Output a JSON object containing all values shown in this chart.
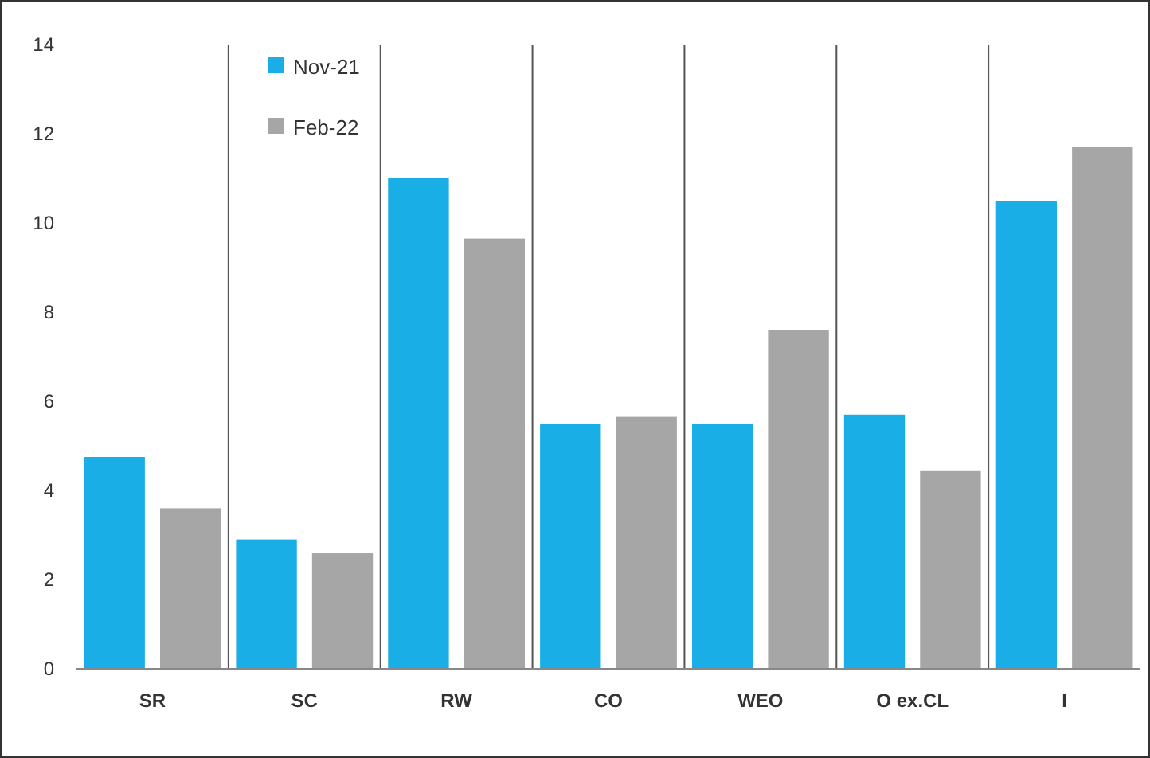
{
  "chart_data": {
    "type": "bar",
    "categories": [
      "SR",
      "SC",
      "RW",
      "CO",
      "WEO",
      "O ex.CL",
      "I"
    ],
    "series": [
      {
        "name": "Nov-21",
        "color": "#1aaee6",
        "values": [
          4.75,
          2.9,
          11.0,
          5.5,
          5.5,
          5.7,
          10.5
        ]
      },
      {
        "name": "Feb-22",
        "color": "#a6a6a6",
        "values": [
          3.6,
          2.6,
          9.65,
          5.65,
          7.6,
          4.45,
          11.7
        ]
      }
    ],
    "ylim": [
      0,
      14
    ],
    "yticks": [
      0,
      2,
      4,
      6,
      8,
      10,
      12,
      14
    ],
    "grid": "x",
    "legend": "top left"
  }
}
